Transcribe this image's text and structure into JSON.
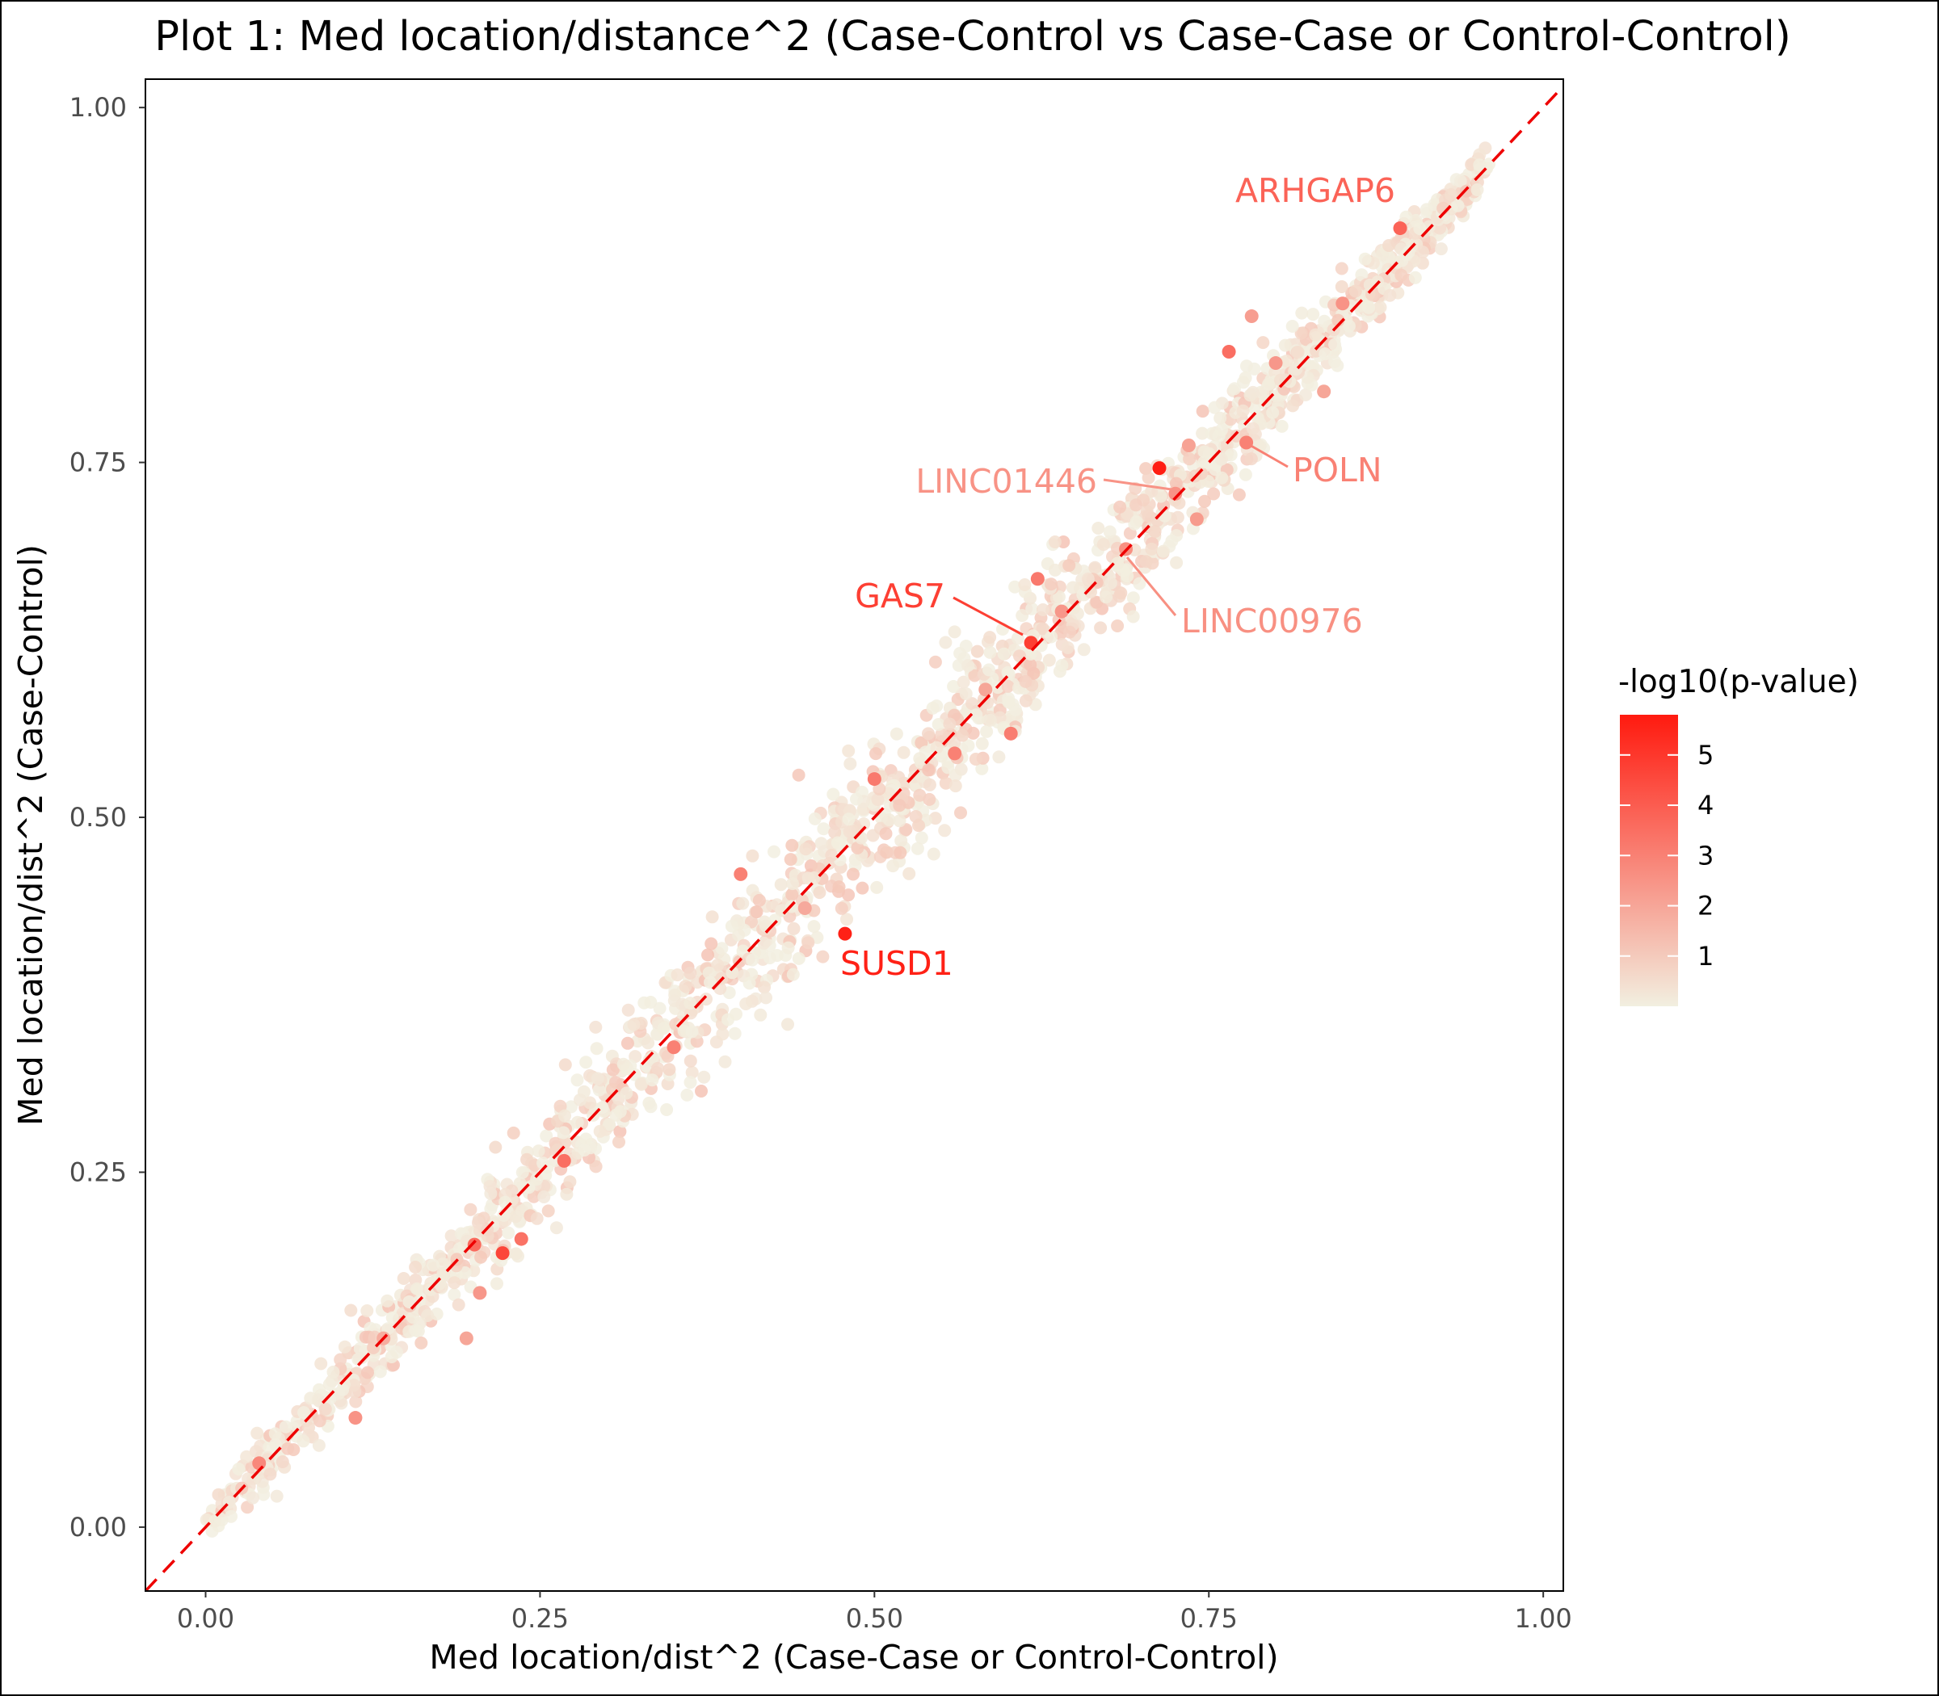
{
  "chart_data": {
    "type": "scatter",
    "title": "Plot 1: Med location/distance^2 (Case-Control vs Case-Case or Control-Control)",
    "xlabel": "Med location/dist^2 (Case-Case or Control-Control)",
    "ylabel": "Med location/dist^2 (Case-Control)",
    "xlim": [
      -0.045,
      1.015
    ],
    "ylim": [
      -0.045,
      1.02
    ],
    "x_ticks": [
      "0.00",
      "0.25",
      "0.50",
      "0.75",
      "1.00"
    ],
    "x_tick_values": [
      0.0,
      0.25,
      0.5,
      0.75,
      1.0
    ],
    "y_ticks": [
      "0.00",
      "0.25",
      "0.50",
      "0.75",
      "1.00"
    ],
    "y_tick_values": [
      0.0,
      0.25,
      0.5,
      0.75,
      1.0
    ],
    "grid": false,
    "reference_line": {
      "slope": 1,
      "intercept": 0,
      "style": "dashed",
      "color": "#ee0000"
    },
    "color_scale": {
      "title": "-log10(p-value)",
      "low_color": "#f2efe0",
      "high_color": "#ff1a0f",
      "min": 0.0,
      "max": 5.8,
      "ticks": [
        "1",
        "2",
        "3",
        "4",
        "5"
      ],
      "tick_values": [
        1,
        2,
        3,
        4,
        5
      ],
      "legend_position": "right"
    },
    "highlighted_points": [
      {
        "gene": "ARHGAP6",
        "x": 0.893,
        "y": 0.915,
        "neglog10p": 3.8
      },
      {
        "gene": "POLN",
        "x": 0.778,
        "y": 0.764,
        "neglog10p": 3.0
      },
      {
        "gene": "LINC01446",
        "x": 0.725,
        "y": 0.728,
        "neglog10p": 2.5
      },
      {
        "gene": "GAS7",
        "x": 0.617,
        "y": 0.623,
        "neglog10p": 4.8
      },
      {
        "gene": "LINC00976",
        "x": 0.688,
        "y": 0.689,
        "neglog10p": 2.6
      },
      {
        "gene": "SUSD1",
        "x": 0.478,
        "y": 0.418,
        "neglog10p": 5.6
      }
    ],
    "notable_points": [
      {
        "x": 0.713,
        "y": 0.746,
        "neglog10p": 5.7
      },
      {
        "x": 0.222,
        "y": 0.193,
        "neglog10p": 4.6
      },
      {
        "x": 0.765,
        "y": 0.828,
        "neglog10p": 3.5
      },
      {
        "x": 0.201,
        "y": 0.199,
        "neglog10p": 3.6
      },
      {
        "x": 0.236,
        "y": 0.203,
        "neglog10p": 3.4
      },
      {
        "x": 0.268,
        "y": 0.258,
        "neglog10p": 3.5
      },
      {
        "x": 0.622,
        "y": 0.668,
        "neglog10p": 3.2
      },
      {
        "x": 0.602,
        "y": 0.559,
        "neglog10p": 3.1
      },
      {
        "x": 0.56,
        "y": 0.545,
        "neglog10p": 3.0
      },
      {
        "x": 0.5,
        "y": 0.527,
        "neglog10p": 3.2
      },
      {
        "x": 0.4,
        "y": 0.46,
        "neglog10p": 3.0
      },
      {
        "x": 0.35,
        "y": 0.338,
        "neglog10p": 3.0
      },
      {
        "x": 0.04,
        "y": 0.045,
        "neglog10p": 2.8
      },
      {
        "x": 0.112,
        "y": 0.077,
        "neglog10p": 2.5
      },
      {
        "x": 0.205,
        "y": 0.165,
        "neglog10p": 2.4
      },
      {
        "x": 0.195,
        "y": 0.133,
        "neglog10p": 2.0
      },
      {
        "x": 0.836,
        "y": 0.8,
        "neglog10p": 2.0
      },
      {
        "x": 0.782,
        "y": 0.853,
        "neglog10p": 2.2
      },
      {
        "x": 0.741,
        "y": 0.71,
        "neglog10p": 2.3
      },
      {
        "x": 0.64,
        "y": 0.645,
        "neglog10p": 2.4
      },
      {
        "x": 0.85,
        "y": 0.862,
        "neglog10p": 2.5
      },
      {
        "x": 0.8,
        "y": 0.82,
        "neglog10p": 2.4
      },
      {
        "x": 0.735,
        "y": 0.762,
        "neglog10p": 2.1
      },
      {
        "x": 0.583,
        "y": 0.59,
        "neglog10p": 2.0
      },
      {
        "x": 0.448,
        "y": 0.436,
        "neglog10p": 1.9
      },
      {
        "x": 0.133,
        "y": 0.133,
        "neglog10p": 1.8
      }
    ],
    "background_cloud": {
      "n_points": 1800,
      "x_range": [
        0.0,
        0.96
      ],
      "y_equals_x_with_noise": true,
      "typical_neglog10p": [
        0.0,
        1.2
      ]
    }
  }
}
